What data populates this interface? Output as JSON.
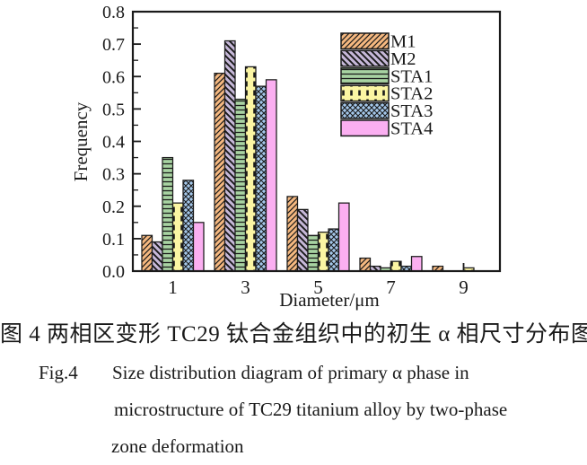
{
  "chart_data": {
    "type": "bar",
    "title": "",
    "xlabel": "Diameter/μm",
    "ylabel": "Frequency",
    "categories": [
      1,
      3,
      5,
      7,
      9
    ],
    "x_ticks": [
      "1",
      "3",
      "5",
      "7",
      "9"
    ],
    "y_ticks": [
      "0.0",
      "0.1",
      "0.2",
      "0.3",
      "0.4",
      "0.5",
      "0.6",
      "0.7",
      "0.8"
    ],
    "xlim": [
      0,
      10
    ],
    "ylim": [
      0,
      0.8
    ],
    "y_major_step": 0.1,
    "y_minor_step": 0.05,
    "grid": false,
    "legend_position": "top-right-inside",
    "series": [
      {
        "name": "M1",
        "fill": "#f5b880",
        "hatch": "diag-fwd",
        "values": [
          0.11,
          0.61,
          0.23,
          0.04,
          0.015
        ]
      },
      {
        "name": "M2",
        "fill": "#c6b8d8",
        "hatch": "diag-back",
        "values": [
          0.09,
          0.71,
          0.19,
          0.015,
          0
        ]
      },
      {
        "name": "STA1",
        "fill": "#a8d3a2",
        "hatch": "horizontal",
        "values": [
          0.35,
          0.53,
          0.11,
          0.01,
          0
        ]
      },
      {
        "name": "STA2",
        "fill": "#fbf5a3",
        "hatch": "vert-dash",
        "values": [
          0.21,
          0.63,
          0.12,
          0.03,
          0.01
        ]
      },
      {
        "name": "STA3",
        "fill": "#a4c7ea",
        "hatch": "cross-diag",
        "values": [
          0.28,
          0.57,
          0.13,
          0.015,
          0
        ]
      },
      {
        "name": "STA4",
        "fill": "#fbaff1",
        "hatch": "none",
        "values": [
          0.15,
          0.59,
          0.21,
          0.045,
          0
        ]
      }
    ]
  },
  "caption": {
    "line1_zh": "图 4  两相区变形 TC29 钛合金组织中的初生 α 相尺寸分布图",
    "fig_label": "Fig.4",
    "line2_en": "Size distribution diagram of primary α phase in",
    "line3_en": "microstructure of TC29 titanium alloy by two-phase",
    "line4_en": "zone deformation"
  },
  "colors": {
    "axis": "#1a1a1a",
    "text": "#1a1a1a",
    "background": "#ffffff"
  }
}
